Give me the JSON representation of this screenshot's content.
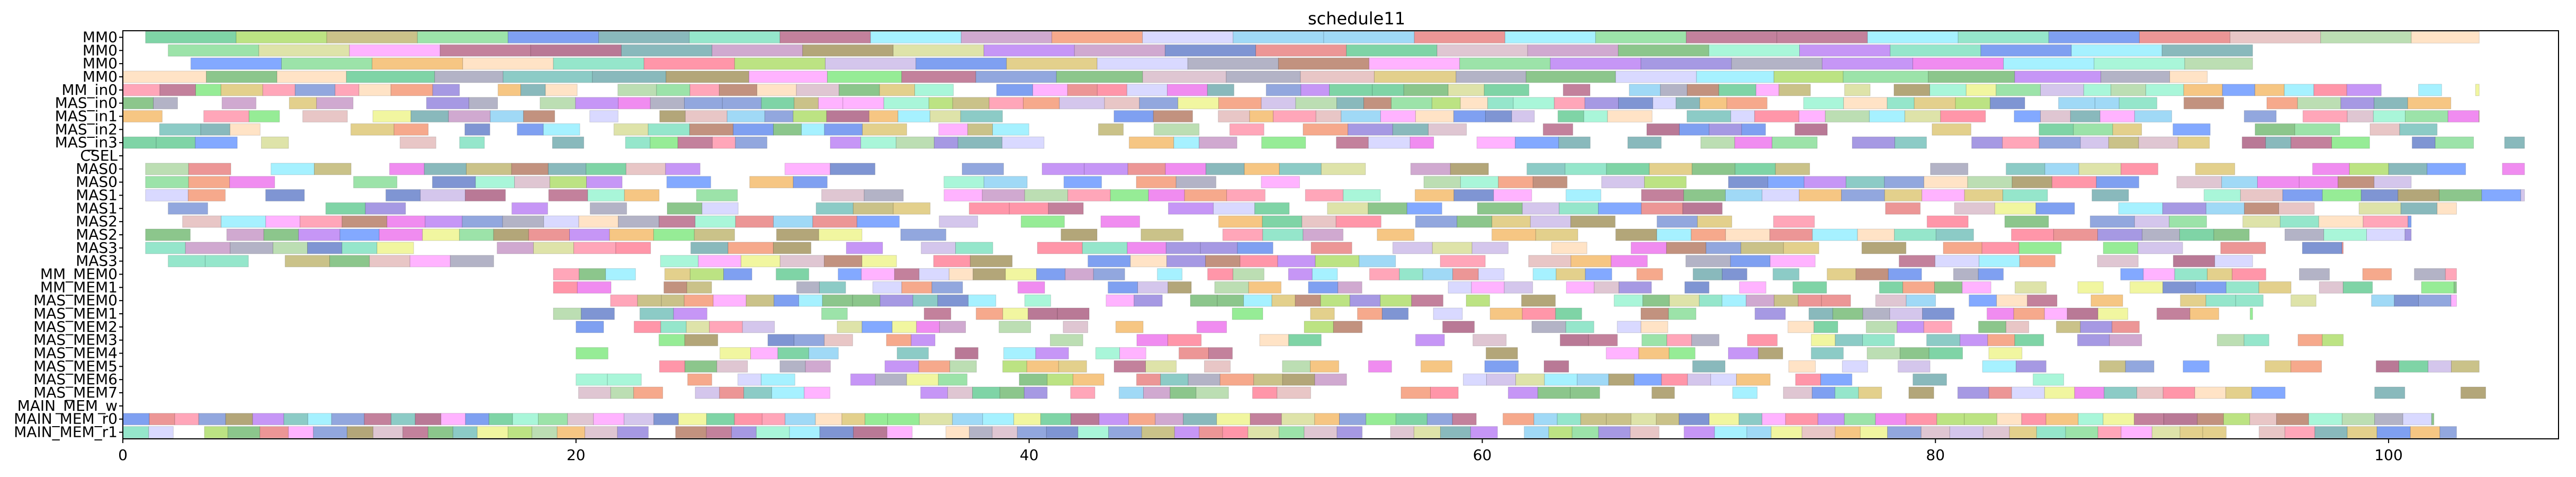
{
  "chart_data": {
    "type": "gantt",
    "title": "schedule11",
    "xlabel": "",
    "ylabel": "",
    "xlim": [
      0,
      107.5
    ],
    "x_ticks": [
      0,
      20,
      40,
      60,
      80,
      100
    ],
    "rows": [
      "MM0",
      "MM0",
      "MM0",
      "MM0",
      "MM_in0",
      "MAS_in0",
      "MAS_in1",
      "MAS_in2",
      "MAS_in3",
      "CSEL",
      "MAS0",
      "MAS0",
      "MAS1",
      "MAS1",
      "MAS2",
      "MAS2",
      "MAS3",
      "MAS3",
      "MM_MEM0",
      "MM_MEM1",
      "MAS_MEM0",
      "MAS_MEM1",
      "MAS_MEM2",
      "MAS_MEM3",
      "MAS_MEM4",
      "MAS_MEM5",
      "MAS_MEM6",
      "MAS_MEM7",
      "MAIN_MEM_w",
      "MAIN_MEM_r0",
      "MAIN_MEM_r1"
    ],
    "grid": false,
    "legend": "none",
    "bar_alpha": 0.6,
    "palette": [
      "#e63fe6",
      "#9b2d5a",
      "#c9a0b4",
      "#2a4fb5",
      "#a69a3a",
      "#4fd6a8",
      "#8a2050",
      "#6a55d0",
      "#e8f060",
      "#4a6cc8",
      "#5ad070",
      "#b8a0e0",
      "#ff6a8a",
      "#c8d070",
      "#2ab86a",
      "#8fc880",
      "#9a4a2a",
      "#40a8a0",
      "#806a20",
      "#3a8a90",
      "#2a60e8",
      "#d8a0a0",
      "#ff80ff",
      "#6ae8ff",
      "#f0a030",
      "#50e050",
      "#a050f0",
      "#ffd0a0",
      "#3070ff",
      "#e05050",
      "#70f0c0",
      "#c0c0ff",
      "#ff5070",
      "#90d030",
      "#60c0f0",
      "#d0b040",
      "#b070b0",
      "#40a040",
      "#f07040",
      "#8080a0"
    ],
    "seed": 11,
    "rows_spec": [
      {
        "row": 0,
        "start": 1,
        "end": 104,
        "step": 4.0,
        "min": 4.0,
        "max": 4.0,
        "gap": 0.0
      },
      {
        "row": 1,
        "start": 2,
        "end": 94,
        "step": 4.0,
        "min": 4.0,
        "max": 4.0,
        "gap": 0.0
      },
      {
        "row": 2,
        "start": 3,
        "end": 94,
        "step": 4.0,
        "min": 4.0,
        "max": 4.0,
        "gap": 0.0
      },
      {
        "row": 3,
        "start": 0,
        "end": 92,
        "step": 3.5,
        "min": 3.0,
        "max": 4.0,
        "gap": 0.0
      },
      {
        "row": 4,
        "start": 0,
        "end": 104,
        "step": 1.8,
        "min": 1.0,
        "max": 2.0,
        "gap": 0.1
      },
      {
        "row": 5,
        "start": 0,
        "end": 104,
        "step": 1.6,
        "min": 1.0,
        "max": 2.0,
        "gap": 0.2
      },
      {
        "row": 6,
        "start": 0,
        "end": 104,
        "step": 1.7,
        "min": 1.0,
        "max": 2.0,
        "gap": 0.25
      },
      {
        "row": 7,
        "start": 0,
        "end": 104,
        "step": 1.7,
        "min": 1.0,
        "max": 2.0,
        "gap": 0.3
      },
      {
        "row": 8,
        "start": 0,
        "end": 106,
        "step": 1.8,
        "min": 1.0,
        "max": 2.0,
        "gap": 0.35
      },
      {
        "row": 10,
        "start": 1,
        "end": 106,
        "step": 2.0,
        "min": 1.5,
        "max": 2.0,
        "gap": 0.3
      },
      {
        "row": 11,
        "start": 1,
        "end": 101,
        "step": 2.0,
        "min": 1.5,
        "max": 2.0,
        "gap": 0.3
      },
      {
        "row": 12,
        "start": 1,
        "end": 106,
        "step": 2.0,
        "min": 1.5,
        "max": 2.0,
        "gap": 0.35
      },
      {
        "row": 13,
        "start": 2,
        "end": 103,
        "step": 2.0,
        "min": 1.5,
        "max": 2.0,
        "gap": 0.35
      },
      {
        "row": 14,
        "start": 1,
        "end": 101,
        "step": 2.0,
        "min": 1.5,
        "max": 2.0,
        "gap": 0.3
      },
      {
        "row": 15,
        "start": 1,
        "end": 101,
        "step": 2.0,
        "min": 1.5,
        "max": 2.0,
        "gap": 0.35
      },
      {
        "row": 16,
        "start": 1,
        "end": 98,
        "step": 2.0,
        "min": 1.5,
        "max": 2.0,
        "gap": 0.35
      },
      {
        "row": 17,
        "start": 2,
        "end": 94,
        "step": 2.0,
        "min": 1.5,
        "max": 2.0,
        "gap": 0.35
      },
      {
        "row": 18,
        "start": 19,
        "end": 103,
        "step": 1.5,
        "min": 1.0,
        "max": 1.5,
        "gap": 0.3
      },
      {
        "row": 19,
        "start": 19,
        "end": 103,
        "step": 1.5,
        "min": 1.0,
        "max": 1.5,
        "gap": 0.35
      },
      {
        "row": 20,
        "start": 19,
        "end": 103,
        "step": 1.5,
        "min": 1.0,
        "max": 1.5,
        "gap": 0.35
      },
      {
        "row": 21,
        "start": 19,
        "end": 94,
        "step": 1.5,
        "min": 1.0,
        "max": 1.5,
        "gap": 0.35
      },
      {
        "row": 22,
        "start": 20,
        "end": 89,
        "step": 1.5,
        "min": 1.0,
        "max": 1.5,
        "gap": 0.4
      },
      {
        "row": 23,
        "start": 20,
        "end": 98,
        "step": 1.5,
        "min": 1.0,
        "max": 1.5,
        "gap": 0.4
      },
      {
        "row": 24,
        "start": 20,
        "end": 86,
        "step": 1.5,
        "min": 1.0,
        "max": 1.5,
        "gap": 0.4
      },
      {
        "row": 25,
        "start": 20,
        "end": 104,
        "step": 1.5,
        "min": 1.0,
        "max": 1.5,
        "gap": 0.4
      },
      {
        "row": 26,
        "start": 20,
        "end": 86,
        "step": 1.5,
        "min": 1.0,
        "max": 1.5,
        "gap": 0.4
      },
      {
        "row": 27,
        "start": 19,
        "end": 105,
        "step": 1.5,
        "min": 1.0,
        "max": 1.5,
        "gap": 0.4
      },
      {
        "row": 29,
        "start": 0,
        "end": 102,
        "step": 1.5,
        "min": 1.0,
        "max": 1.5,
        "gap": 0.05
      },
      {
        "row": 30,
        "start": 0,
        "end": 103,
        "step": 1.5,
        "min": 1.0,
        "max": 1.5,
        "gap": 0.1
      }
    ]
  }
}
